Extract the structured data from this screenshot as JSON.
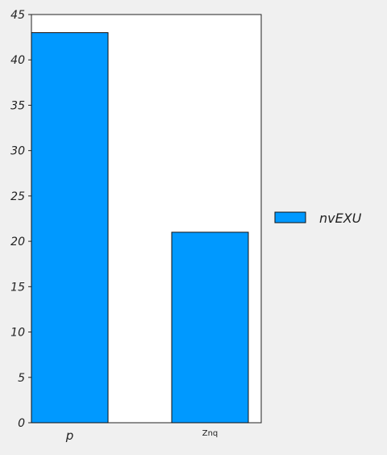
{
  "chart_data": {
    "type": "bar",
    "categories": [
      "p",
      "Znq"
    ],
    "series": [
      {
        "name": "nvEXU",
        "values": [
          43,
          21
        ]
      }
    ],
    "ylim": [
      0,
      45
    ],
    "yticks": [
      0,
      5,
      10,
      15,
      20,
      25,
      30,
      35,
      40,
      45
    ],
    "grid": false,
    "legend": "right",
    "colors": {
      "bar_fill": "#0099ff",
      "bar_stroke": "#111111",
      "plot_background": "#ffffff",
      "page_background": "#f0f0f0"
    }
  }
}
